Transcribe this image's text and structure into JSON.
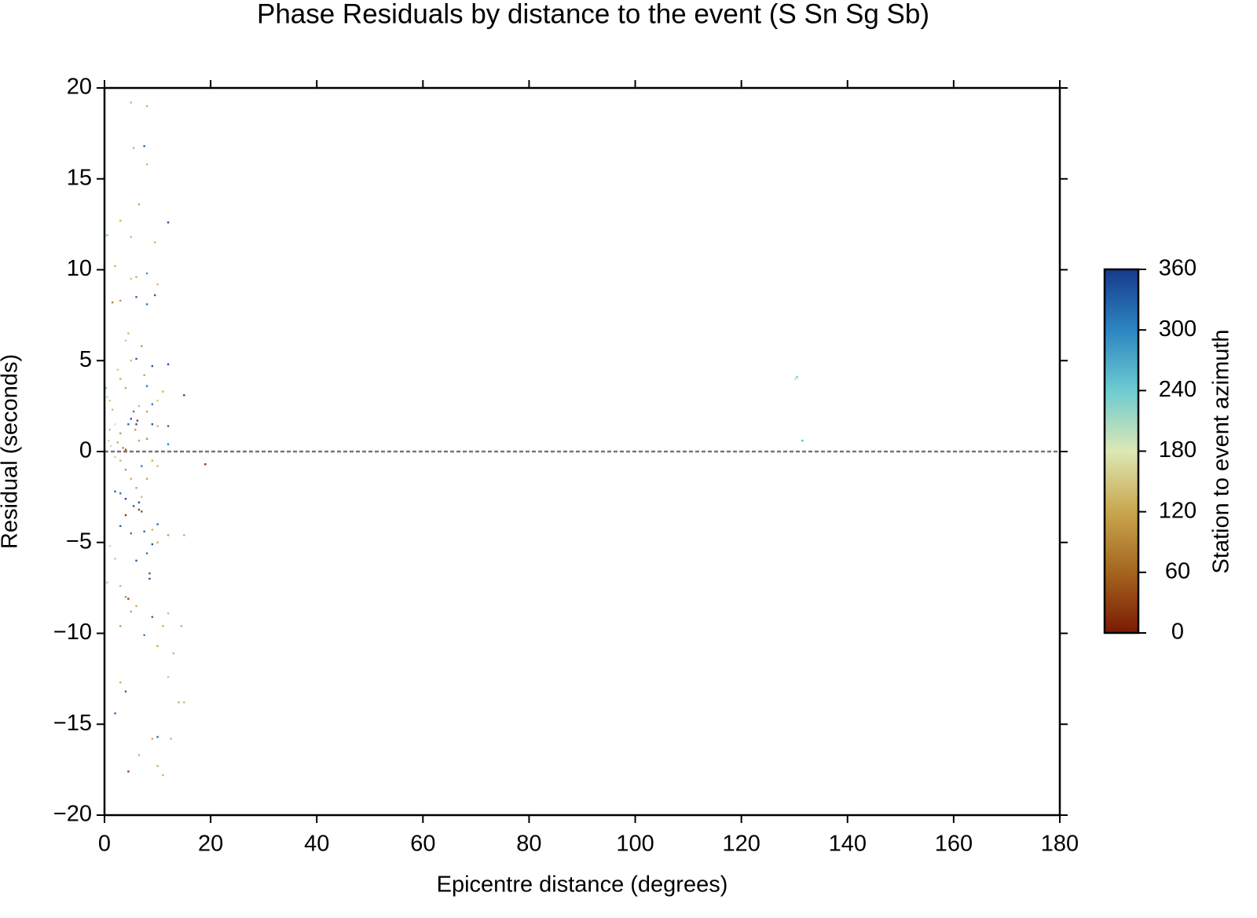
{
  "chart_data": {
    "type": "scatter",
    "title": "Phase Residuals by distance to the event (S Sn Sg Sb)",
    "x_label": "Epicentre distance (degrees)",
    "y_label": "Residual (seconds)",
    "color_label": "Station to event azimuth",
    "xlim": [
      0,
      180
    ],
    "xticks": [
      0,
      20,
      40,
      60,
      80,
      100,
      120,
      140,
      160,
      180
    ],
    "ylim": [
      -20,
      20
    ],
    "yticks": [
      {
        "value": -20,
        "label": "−20"
      },
      {
        "value": -15,
        "label": "−15"
      },
      {
        "value": -10,
        "label": "−10"
      },
      {
        "value": -5,
        "label": "−5"
      },
      0,
      5,
      10,
      15,
      20
    ],
    "clim": [
      0,
      360
    ],
    "cticks": [
      0,
      60,
      120,
      180,
      240,
      300,
      360
    ],
    "colormap": [
      "#7a1a05",
      "#a5651e",
      "#c9a64e",
      "#dce8b5",
      "#6dcbd0",
      "#2c85c0",
      "#173a8c"
    ],
    "hline": 0,
    "x": [
      0.5,
      0.3,
      0.5,
      1,
      1.5,
      2,
      1,
      0.8,
      1.2,
      2.5,
      3,
      3.5,
      4,
      4.5,
      5,
      5.5,
      6,
      6.2,
      5.8,
      6.5,
      3,
      2.5,
      4,
      5,
      6,
      7,
      7.5,
      8,
      9,
      12,
      15,
      11,
      10,
      9,
      8,
      9,
      10,
      12,
      12,
      8,
      6.5,
      2,
      3,
      4,
      5,
      6,
      7,
      2,
      3,
      4,
      5.5,
      6.5,
      7,
      4,
      6.5,
      8,
      9,
      10,
      7,
      3,
      5,
      7.5,
      9,
      10,
      12,
      15,
      9,
      8,
      6,
      8.5,
      8.5,
      10,
      2,
      3,
      4,
      4.5,
      6,
      7.5,
      9,
      10,
      11,
      12,
      13,
      14.5,
      3,
      4,
      2,
      9,
      10,
      12.5,
      6.5,
      10,
      11,
      4.5,
      14,
      15,
      12,
      3,
      5,
      0.5,
      1,
      5,
      8,
      5.5,
      7.5,
      8,
      6.5,
      12,
      3,
      5,
      9.5,
      2,
      5,
      6,
      8,
      10,
      1.5,
      3,
      6,
      8,
      9.5,
      4.5,
      4,
      19,
      130.5,
      130.2,
      131.5
    ],
    "values": [
      11.9,
      3.5,
      3.0,
      2.8,
      2.3,
      1.5,
      1.2,
      0.6,
      0.3,
      0.5,
      1.0,
      0.2,
      0.1,
      1.5,
      1.8,
      2.2,
      1.5,
      1.7,
      1.2,
      2.5,
      4.0,
      4.5,
      3.5,
      5.0,
      5.1,
      5.8,
      4.2,
      3.6,
      4.7,
      4.8,
      3.1,
      3.3,
      2.8,
      2.6,
      2.2,
      1.5,
      1.4,
      1.4,
      0.4,
      0.7,
      0.6,
      -0.3,
      -0.5,
      -1.0,
      -1.5,
      -2.0,
      -2.5,
      -2.2,
      -2.3,
      -2.6,
      -3.0,
      -3.2,
      -3.3,
      -3.5,
      -2.8,
      -1.5,
      -0.5,
      -0.8,
      -0.8,
      -4.1,
      -4.5,
      -4.4,
      -4.3,
      -4.0,
      -4.6,
      -4.6,
      -5.1,
      -5.6,
      -6.0,
      -6.7,
      -7.0,
      -5.0,
      -5.9,
      -7.4,
      -8.0,
      -8.1,
      -8.5,
      -10.1,
      -9.1,
      -10.7,
      -9.6,
      -8.9,
      -11.1,
      -9.6,
      -9.6,
      -13.2,
      -14.4,
      -15.8,
      -15.7,
      -15.8,
      -16.7,
      -17.3,
      -17.8,
      -17.6,
      -13.8,
      -13.8,
      -12.4,
      -12.7,
      -8.8,
      -7.2,
      -5.2,
      19.2,
      19.0,
      16.7,
      16.8,
      15.8,
      13.6,
      12.6,
      12.7,
      11.8,
      11.5,
      10.2,
      9.5,
      9.6,
      9.8,
      9.2,
      8.2,
      8.3,
      8.5,
      8.1,
      8.6,
      6.5,
      6.1,
      -0.7,
      4.1,
      4.0,
      0.6
    ],
    "azimuth": [
      240,
      230,
      200,
      150,
      140,
      180,
      220,
      200,
      170,
      130,
      110,
      100,
      40,
      320,
      330,
      300,
      340,
      20,
      120,
      140,
      130,
      150,
      120,
      140,
      330,
      110,
      120,
      310,
      330,
      340,
      20,
      130,
      150,
      300,
      120,
      340,
      130,
      320,
      300,
      100,
      120,
      160,
      140,
      110,
      130,
      120,
      140,
      320,
      310,
      340,
      330,
      30,
      320,
      20,
      340,
      120,
      130,
      140,
      300,
      330,
      310,
      320,
      130,
      320,
      110,
      130,
      340,
      310,
      330,
      320,
      340,
      130,
      150,
      140,
      100,
      30,
      130,
      300,
      320,
      120,
      130,
      140,
      130,
      130,
      110,
      40,
      310,
      130,
      320,
      140,
      130,
      130,
      130,
      30,
      130,
      140,
      150,
      130,
      120,
      220,
      200,
      140,
      130,
      130,
      320,
      140,
      120,
      340,
      130,
      140,
      140,
      130,
      150,
      130,
      280,
      140,
      90,
      110,
      320,
      310,
      330,
      140,
      150,
      20,
      240,
      200,
      260
    ]
  }
}
